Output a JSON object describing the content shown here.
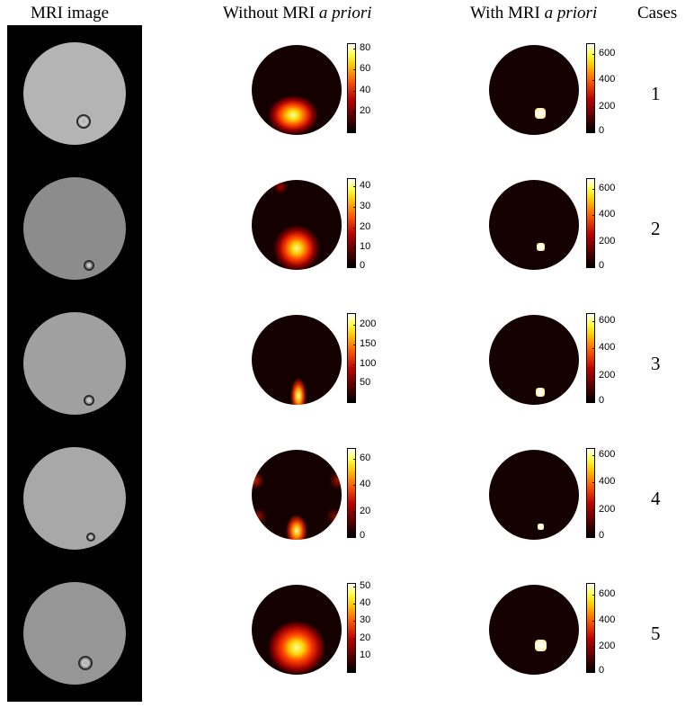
{
  "headers": {
    "mri_image": "MRI image",
    "without_prefix": "Without MRI ",
    "without_italic": "a priori",
    "with_prefix": "With MRI ",
    "with_italic": "a priori",
    "cases": "Cases"
  },
  "rows": [
    {
      "case": "1",
      "without_ticks": [
        "80",
        "60",
        "40",
        "20"
      ],
      "without_max": 85,
      "without_tick_values": [
        80,
        60,
        40,
        20
      ],
      "with_ticks": [
        "600",
        "400",
        "200",
        "0"
      ],
      "with_max": 680,
      "with_tick_values": [
        600,
        400,
        200,
        0
      ]
    },
    {
      "case": "2",
      "without_ticks": [
        "40",
        "30",
        "20",
        "10",
        "0"
      ],
      "without_max": 44,
      "without_tick_values": [
        40,
        30,
        20,
        10,
        0
      ],
      "with_ticks": [
        "600",
        "400",
        "200",
        "0"
      ],
      "with_max": 680,
      "with_tick_values": [
        600,
        400,
        200,
        0
      ]
    },
    {
      "case": "3",
      "without_ticks": [
        "200",
        "150",
        "100",
        "50"
      ],
      "without_max": 230,
      "without_tick_values": [
        200,
        150,
        100,
        50
      ],
      "with_ticks": [
        "600",
        "400",
        "200",
        "0"
      ],
      "with_max": 660,
      "with_tick_values": [
        600,
        400,
        200,
        0
      ]
    },
    {
      "case": "4",
      "without_ticks": [
        "60",
        "40",
        "20",
        "0"
      ],
      "without_max": 68,
      "without_tick_values": [
        60,
        40,
        20,
        0
      ],
      "with_ticks": [
        "600",
        "400",
        "200",
        "0"
      ],
      "with_max": 650,
      "with_tick_values": [
        600,
        400,
        200,
        0
      ]
    },
    {
      "case": "5",
      "without_ticks": [
        "50",
        "40",
        "30",
        "20",
        "10"
      ],
      "without_max": 52,
      "without_tick_values": [
        50,
        40,
        30,
        20,
        10
      ],
      "with_ticks": [
        "600",
        "400",
        "200",
        "0"
      ],
      "with_max": 690,
      "with_tick_values": [
        600,
        400,
        200,
        0
      ]
    }
  ],
  "colors": {
    "mri_bg": "#000000",
    "map_bg": "#150000",
    "hot_low": "#c00000",
    "hot_high": "#ffff40"
  }
}
